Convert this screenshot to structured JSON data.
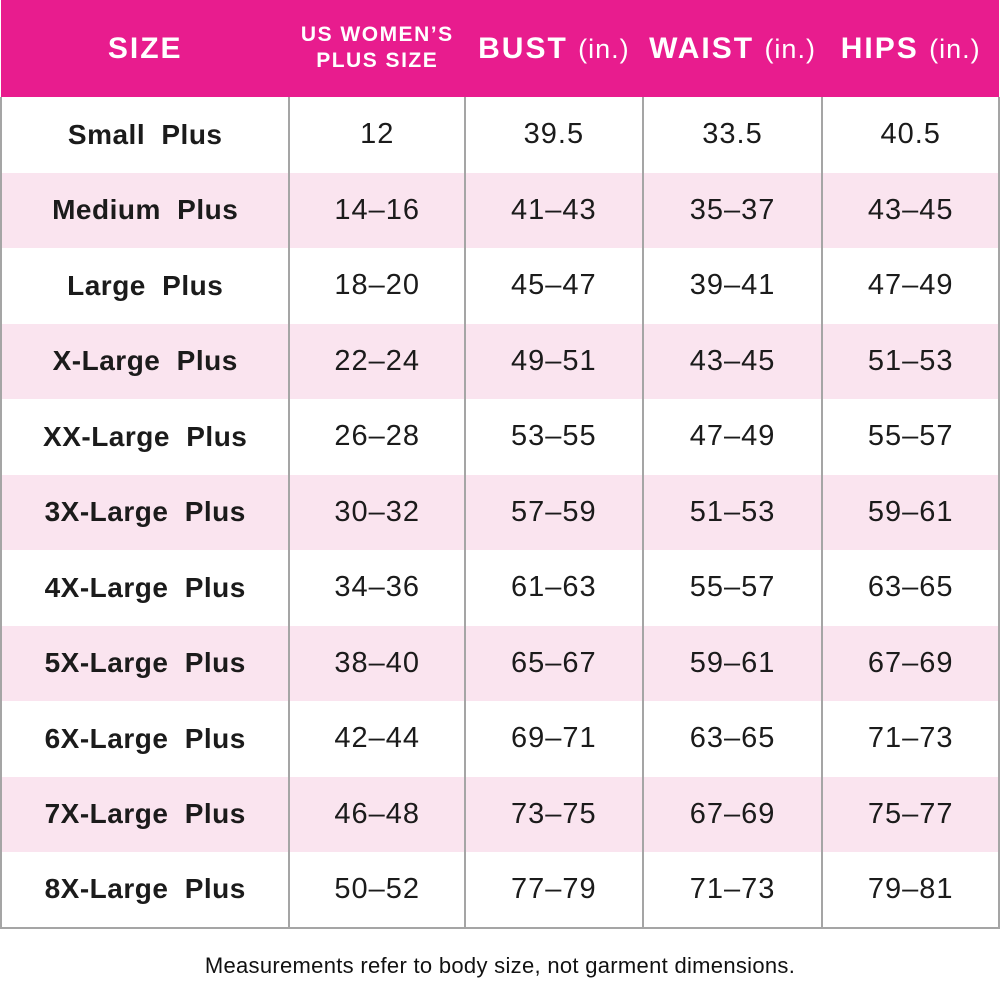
{
  "colors": {
    "header_bg": "#e81c8e",
    "row_alt_bg": "#fae4ef",
    "grid_line": "#a5a5a5",
    "text": "#1b1b1b"
  },
  "table": {
    "headers": [
      {
        "title": "SIZE"
      },
      {
        "line1": "US WOMEN’S",
        "line2": "PLUS SIZE"
      },
      {
        "title": "BUST",
        "unit": "(in.)"
      },
      {
        "title": "WAIST",
        "unit": "(in.)"
      },
      {
        "title": "HIPS",
        "unit": "(in.)"
      }
    ],
    "rows": [
      [
        "Small Plus",
        "12",
        "39.5",
        "33.5",
        "40.5"
      ],
      [
        "Medium Plus",
        "14–16",
        "41–43",
        "35–37",
        "43–45"
      ],
      [
        "Large Plus",
        "18–20",
        "45–47",
        "39–41",
        "47–49"
      ],
      [
        "X-Large Plus",
        "22–24",
        "49–51",
        "43–45",
        "51–53"
      ],
      [
        "XX-Large Plus",
        "26–28",
        "53–55",
        "47–49",
        "55–57"
      ],
      [
        "3X-Large Plus",
        "30–32",
        "57–59",
        "51–53",
        "59–61"
      ],
      [
        "4X-Large Plus",
        "34–36",
        "61–63",
        "55–57",
        "63–65"
      ],
      [
        "5X-Large Plus",
        "38–40",
        "65–67",
        "59–61",
        "67–69"
      ],
      [
        "6X-Large Plus",
        "42–44",
        "69–71",
        "63–65",
        "71–73"
      ],
      [
        "7X-Large Plus",
        "46–48",
        "73–75",
        "67–69",
        "75–77"
      ],
      [
        "8X-Large Plus",
        "50–52",
        "77–79",
        "71–73",
        "79–81"
      ]
    ]
  },
  "footnote": "Measurements refer to body size, not garment dimensions."
}
